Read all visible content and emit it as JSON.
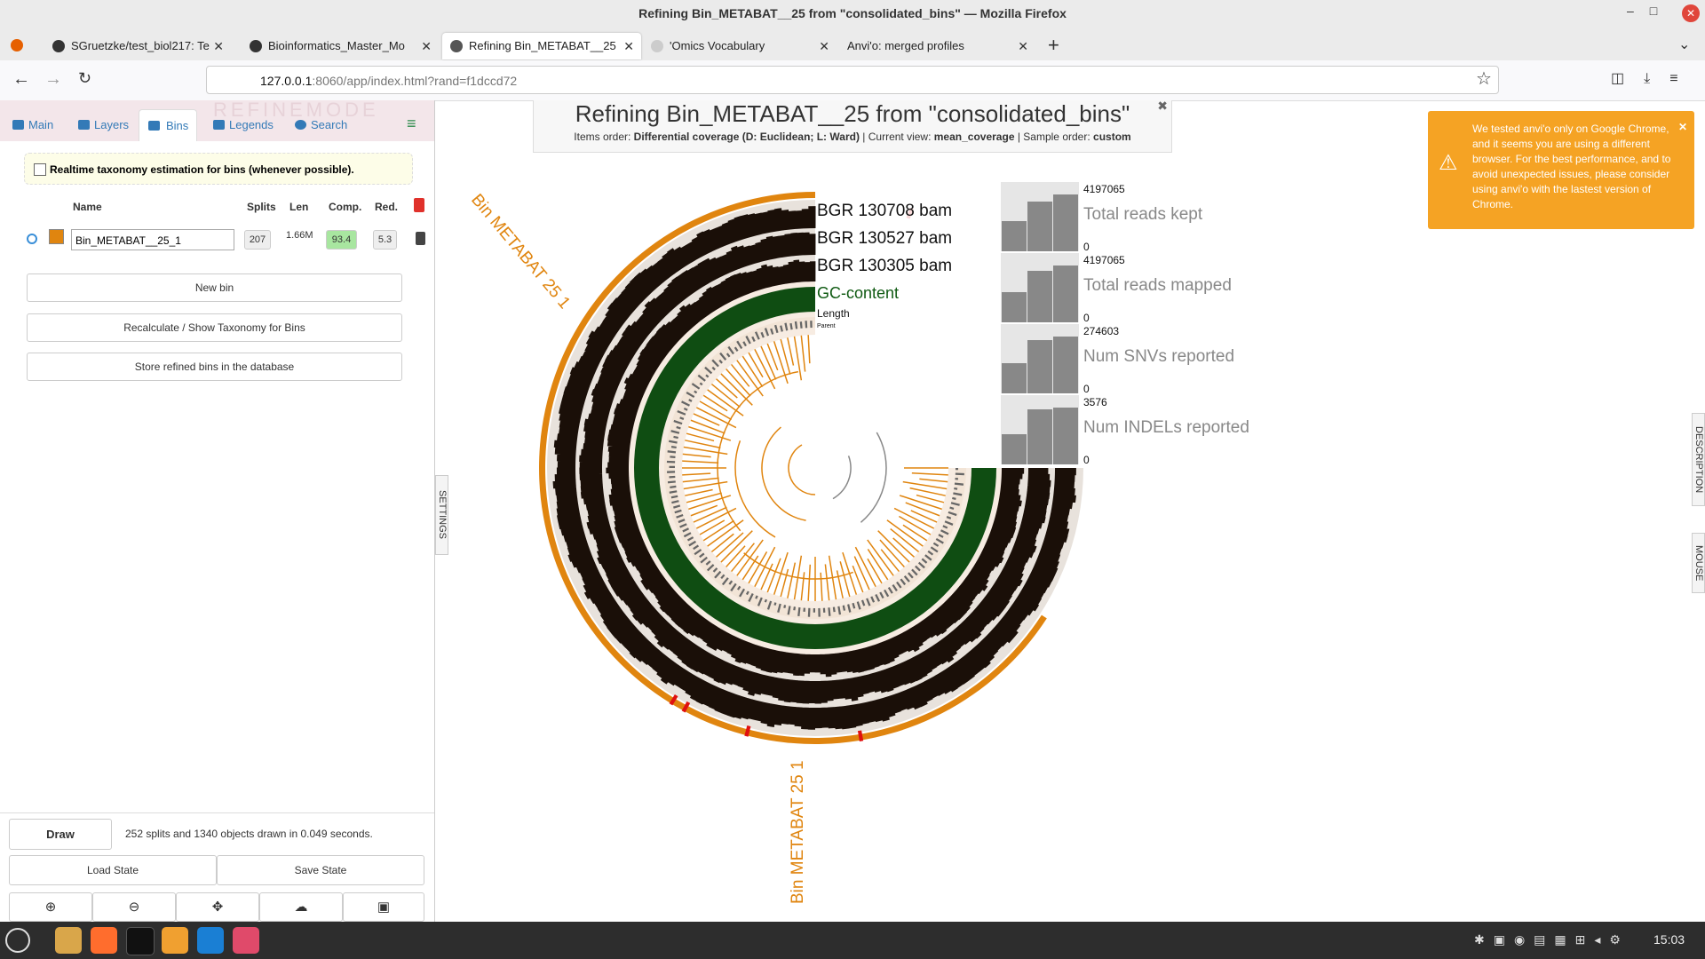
{
  "browser": {
    "window_title": "Refining Bin_METABAT__25 from \"consolidated_bins\" — Mozilla Firefox",
    "tabs": [
      "SGruetzke/test_biol217: Te",
      "Bioinformatics_Master_Mo",
      "Refining Bin_METABAT__25",
      "'Omics Vocabulary",
      "Anvi'o: merged profiles"
    ],
    "url_host": "127.0.0.1",
    "url_rest": ":8060/app/index.html?rand=f1dccd72"
  },
  "sidebar": {
    "tabs": [
      "Main",
      "Layers",
      "Bins",
      "Legends",
      "Search"
    ],
    "watermark": "REFINEMODE",
    "realtime_taxonomy": "Realtime taxonomy estimation for bins (whenever possible).",
    "columns": [
      "Name",
      "Splits",
      "Len",
      "Comp.",
      "Red."
    ],
    "bins": [
      {
        "name": "Bin_METABAT__25_1",
        "splits": "207",
        "length": "1.66M",
        "completion": "93.4",
        "redundancy": "5.3"
      }
    ],
    "buttons": [
      "New bin",
      "Recalculate / Show Taxonomy for Bins",
      "Store refined bins in the database"
    ],
    "draw": "Draw",
    "status": "252 splits and 1340 objects drawn in 0.049 seconds.",
    "load_state": "Load State",
    "save_state": "Save State",
    "settings_tab": "SETTINGS"
  },
  "main": {
    "title": "Refining Bin_METABAT__25 from \"consolidated_bins\"",
    "subtitle": [
      "Items order:",
      "Differential coverage (D: Euclidean; L: Ward)",
      "| Current view:",
      "mean_coverage",
      "| Sample order:",
      "custom"
    ],
    "layers": [
      "BGR 130708 bam",
      "BGR 130527 bam",
      "BGR 130305 bam",
      "GC-content",
      "Length",
      "Parent"
    ],
    "bin_label": "Bin METABAT 25 1",
    "bar_layers": [
      {
        "max": "4197065",
        "name": "Total reads kept",
        "min": "0"
      },
      {
        "max": "4197065",
        "name": "Total reads mapped",
        "min": "0"
      },
      {
        "max": "274603",
        "name": "Num SNVs reported",
        "min": "0"
      },
      {
        "max": "3576",
        "name": "Num INDELs reported",
        "min": "0"
      }
    ],
    "warning": "We tested anvi'o only on Google Chrome, and it seems you are using a different browser. For the best performance, and to avoid unexpected issues, please consider using anvi'o with the lastest version of Chrome.",
    "right_tabs": [
      "DESCRIPTION",
      "MOUSE"
    ]
  },
  "taskbar": {
    "clock": "15:03"
  }
}
